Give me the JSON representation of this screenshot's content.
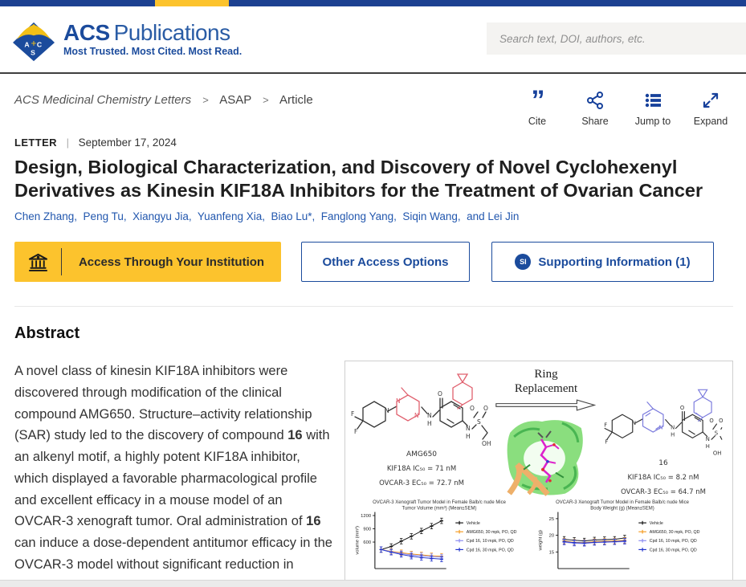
{
  "colors": {
    "acs_blue": "#17419b",
    "accent_yellow": "#fcc32d",
    "link_blue": "#2257ae",
    "topbar_blue": "#1d4191"
  },
  "header": {
    "logo_acs": "ACS",
    "logo_pub": "Publications",
    "tagline": "Most Trusted. Most Cited. Most Read.",
    "search_placeholder": "Search text, DOI, authors, etc."
  },
  "breadcrumb": {
    "journal": "ACS Medicinal Chemistry Letters",
    "sep": ">",
    "level2": "ASAP",
    "level3": "Article"
  },
  "toolbar": {
    "cite_glyph": "”",
    "cite": "Cite",
    "share": "Share",
    "jumpto": "Jump to",
    "expand": "Expand"
  },
  "article": {
    "content_type": "LETTER",
    "pipe": "|",
    "pub_date": "September 17, 2024",
    "title": "Design, Biological Characterization, and Discovery of Novel Cyclohexenyl Derivatives as Kinesin KIF18A Inhibitors for the Treatment of Ovarian Cancer",
    "authors": "Chen Zhang,  Peng Tu,  Xiangyu Jia,  Yuanfeng Xia,  Biao Lu*,  Fanglong Yang,  Siqin Wang,  and Lei Jin"
  },
  "access": {
    "institution": "Access Through Your Institution",
    "other": "Other Access Options",
    "si_badge": "SI",
    "si": "Supporting Information (1)"
  },
  "abstract": {
    "heading": "Abstract",
    "parts": [
      {
        "t": "A novel class of kinesin KIF18A inhibitors were discovered through modification of the clinical compound AMG650. Structure–activity relationship (SAR) study led to the discovery of compound "
      },
      {
        "t": "16",
        "b": true
      },
      {
        "t": " with an alkenyl motif, a highly potent KIF18A inhibitor, which displayed a favorable pharmacological profile and excellent efficacy in a mouse model of an OVCAR-3 xenograft tumor. Oral administration of "
      },
      {
        "t": "16",
        "b": true
      },
      {
        "t": " can induce a dose-dependent antitumor efficacy in the OVCAR-3 model without significant reduction in"
      }
    ]
  },
  "figure": {
    "arrow_line1": "Ring",
    "arrow_line2": "Replacement",
    "left_name": "AMG650",
    "left_ic50": "KIF18A IC₅₀ = 71 nM",
    "left_ec50": "OVCAR-3 EC₅₀ = 72.7 nM",
    "right_name": "16",
    "right_ic50": "KIF18A IC₅₀ = 8.2 nM",
    "right_ec50": "OVCAR-3 EC₅₀ = 64.7 nM"
  },
  "chart_data": [
    {
      "type": "line",
      "title": "OVCAR-3 Xenograft Tumor Model in Female Balb/c nude Mice",
      "subtitle": "Tumor Volume (mm³) (Mean±SEM)",
      "ylabel": "volume (mm³)",
      "ylim": [
        0,
        1280
      ],
      "yticks": [
        600,
        900,
        1200
      ],
      "grid": false,
      "legend_position": "right",
      "series": [
        {
          "name": "Vehicle",
          "color": "#111111",
          "values": [
            430,
            500,
            620,
            730,
            850,
            960,
            1080
          ]
        },
        {
          "name": "AMG650, 30 mpk, PO, QD",
          "color": "#f59b20",
          "values": [
            430,
            390,
            360,
            330,
            310,
            290,
            280
          ]
        },
        {
          "name": "Cpd 16, 10 mpk, PO, QD",
          "color": "#8a8af0",
          "values": [
            430,
            380,
            340,
            310,
            290,
            270,
            260
          ]
        },
        {
          "name": "Cpd 16, 30 mpk, PO, QD",
          "color": "#2033cc",
          "values": [
            430,
            370,
            320,
            280,
            250,
            230,
            215
          ]
        }
      ]
    },
    {
      "type": "line",
      "title": "OVCAR-3 Xenograft Tumor Model in Female Balb/c nude Mice",
      "subtitle": "Body Weight (g) (Mean±SEM)",
      "ylabel": "weight (g)",
      "ylim": [
        10,
        27
      ],
      "yticks": [
        15,
        20,
        25
      ],
      "grid": false,
      "legend_position": "right",
      "series": [
        {
          "name": "Vehicle",
          "color": "#111111",
          "values": [
            18.8,
            18.5,
            18.3,
            18.6,
            18.7,
            18.8,
            19.2
          ]
        },
        {
          "name": "AMG650, 30 mpk, PO, QD",
          "color": "#f59b20",
          "values": [
            18.3,
            17.9,
            17.8,
            18.1,
            18.2,
            18.3,
            18.5
          ]
        },
        {
          "name": "Cpd 16, 10 mpk, PO, QD",
          "color": "#8a8af0",
          "values": [
            17.9,
            17.6,
            17.5,
            17.8,
            17.9,
            18.0,
            18.1
          ]
        },
        {
          "name": "Cpd 16, 30 mpk, PO, QD",
          "color": "#2033cc",
          "values": [
            18.1,
            17.8,
            17.7,
            17.9,
            18.0,
            18.1,
            18.3
          ]
        }
      ]
    }
  ]
}
